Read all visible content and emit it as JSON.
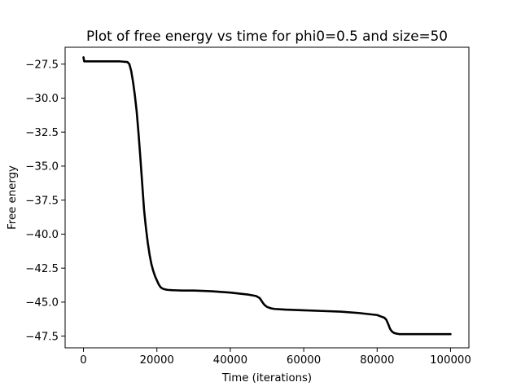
{
  "chart_data": {
    "type": "line",
    "title": "Plot of free energy vs time for phi0=0.5 and size=50",
    "xlabel": "Time (iterations)",
    "ylabel": "Free energy",
    "xlim": [
      -5000,
      105000
    ],
    "ylim": [
      -48.36,
      -26.26
    ],
    "xticks": [
      0,
      20000,
      40000,
      60000,
      80000,
      100000
    ],
    "xtick_labels": [
      "0",
      "20000",
      "40000",
      "60000",
      "80000",
      "100000"
    ],
    "yticks": [
      -27.5,
      -30.0,
      -32.5,
      -35.0,
      -37.5,
      -40.0,
      -42.5,
      -45.0,
      -47.5
    ],
    "ytick_labels": [
      "−27.5",
      "−30.0",
      "−32.5",
      "−35.0",
      "−37.5",
      "−40.0",
      "−42.5",
      "−45.0",
      "−47.5"
    ],
    "grid": false,
    "series": [
      {
        "color": "#000000",
        "x": [
          0,
          200,
          400,
          2000,
          5000,
          10000,
          12000,
          12500,
          13000,
          13500,
          14000,
          14500,
          15000,
          15500,
          16000,
          16500,
          17000,
          17500,
          18000,
          18500,
          19000,
          19500,
          20000,
          20500,
          21000,
          21500,
          22000,
          22500,
          23000,
          24000,
          25000,
          27000,
          30000,
          35000,
          40000,
          45000,
          47000,
          48000,
          48500,
          49000,
          49500,
          50000,
          51000,
          52000,
          55000,
          60000,
          65000,
          70000,
          75000,
          80000,
          81000,
          82000,
          82500,
          83000,
          83500,
          84000,
          84500,
          85000,
          86000,
          88000,
          90000,
          95000,
          100000
        ],
        "y": [
          -27.0,
          -27.3,
          -27.3,
          -27.3,
          -27.3,
          -27.3,
          -27.35,
          -27.5,
          -28.0,
          -28.8,
          -29.8,
          -31.0,
          -32.6,
          -34.4,
          -36.3,
          -38.2,
          -39.5,
          -40.6,
          -41.5,
          -42.2,
          -42.7,
          -43.1,
          -43.4,
          -43.7,
          -43.9,
          -44.0,
          -44.05,
          -44.08,
          -44.1,
          -44.12,
          -44.13,
          -44.15,
          -44.15,
          -44.2,
          -44.3,
          -44.45,
          -44.55,
          -44.7,
          -44.9,
          -45.1,
          -45.25,
          -45.35,
          -45.45,
          -45.5,
          -45.55,
          -45.6,
          -45.65,
          -45.7,
          -45.8,
          -45.95,
          -46.05,
          -46.15,
          -46.3,
          -46.6,
          -46.95,
          -47.15,
          -47.25,
          -47.3,
          -47.35,
          -47.35,
          -47.35,
          -47.35,
          -47.35
        ]
      }
    ]
  }
}
